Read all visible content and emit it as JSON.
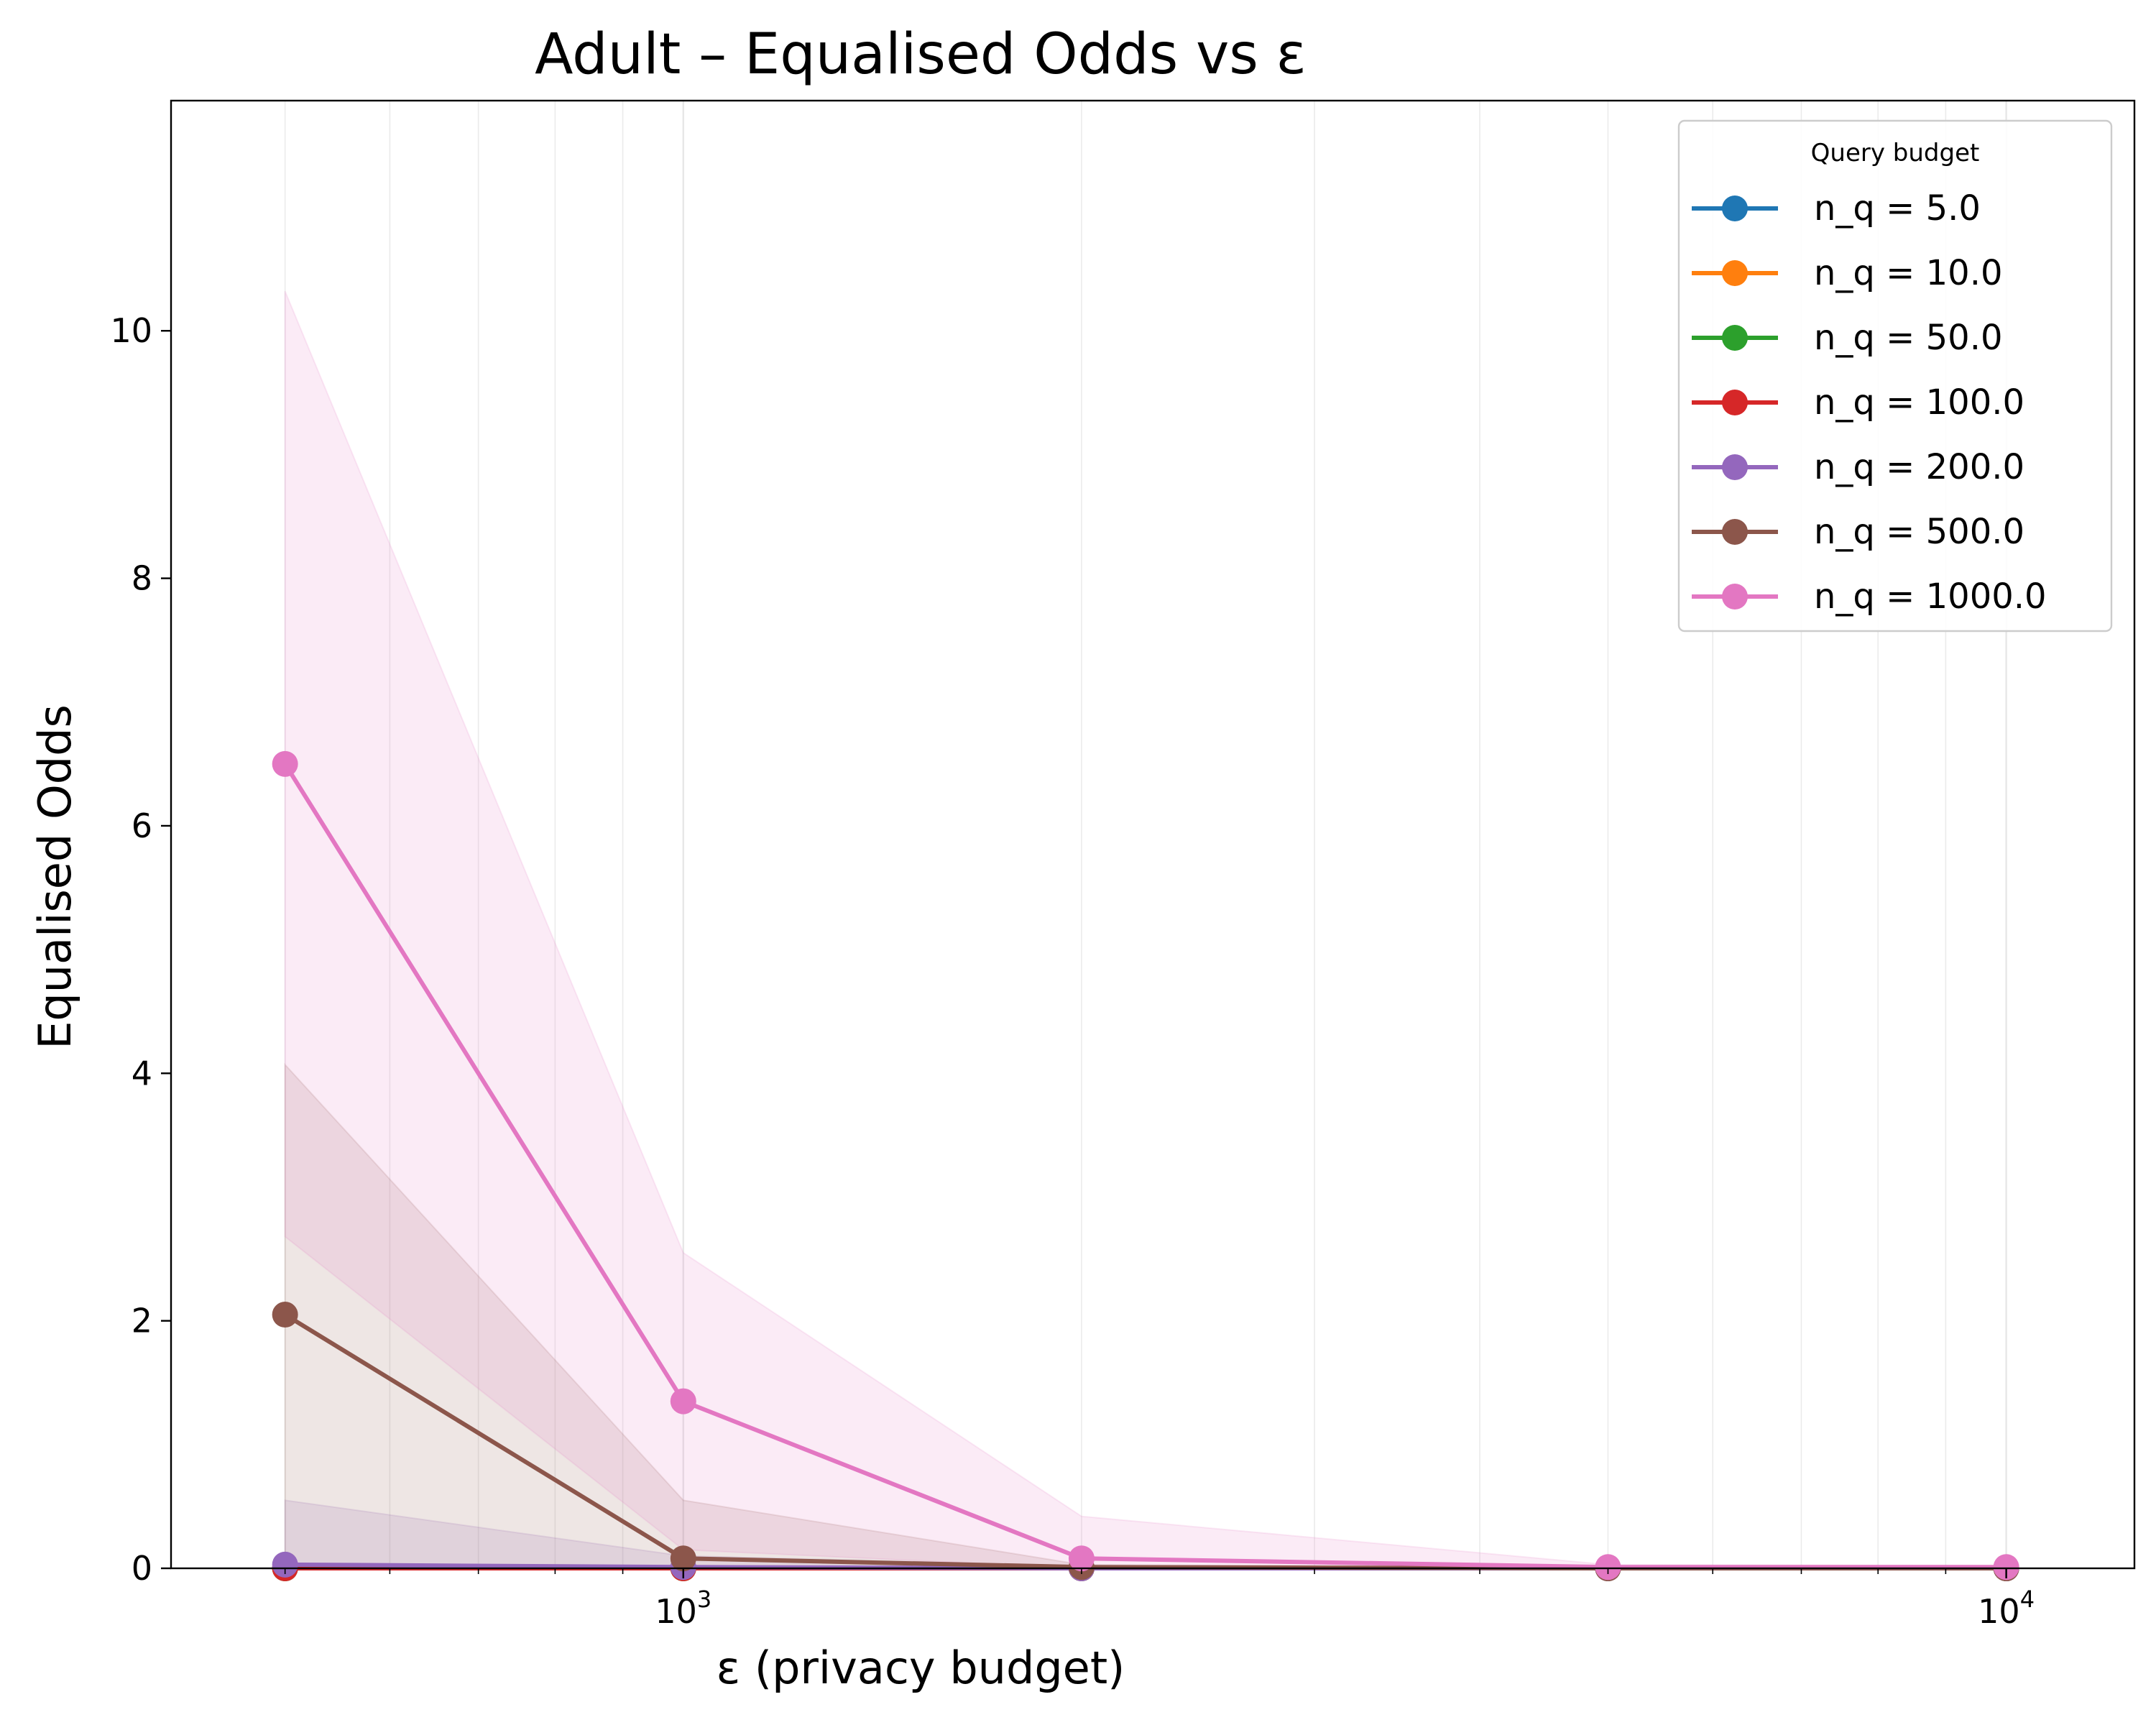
{
  "chart_data": {
    "type": "line",
    "title": "Adult – Equalised Odds vs ε",
    "xlabel": "ε (privacy budget)",
    "ylabel": "Equalised Odds",
    "x_scale": "log",
    "xlim": [
      410,
      12500
    ],
    "ylim": [
      0,
      11.86
    ],
    "x_ticks": [
      {
        "value": 1000,
        "base": "10",
        "exp": "3"
      },
      {
        "value": 10000,
        "base": "10",
        "exp": "4"
      }
    ],
    "y_ticks": [
      0,
      2,
      4,
      6,
      8,
      10
    ],
    "grid": "vertical",
    "legend": {
      "title": "Query budget",
      "position": "top-right"
    },
    "x": [
      500,
      1000,
      2000,
      5000,
      10000
    ],
    "series": [
      {
        "name": "n_q = 5.0",
        "color": "#1f77b4",
        "values": [
          0,
          0,
          0,
          0,
          0
        ],
        "lower": [
          0,
          0,
          0,
          0,
          0
        ],
        "upper": [
          0,
          0,
          0,
          0,
          0
        ]
      },
      {
        "name": "n_q = 10.0",
        "color": "#ff7f0e",
        "values": [
          0,
          0,
          0,
          0,
          0
        ],
        "lower": [
          0,
          0,
          0,
          0,
          0
        ],
        "upper": [
          0,
          0,
          0,
          0,
          0
        ]
      },
      {
        "name": "n_q = 50.0",
        "color": "#2ca02c",
        "values": [
          0,
          0,
          0,
          0,
          0
        ],
        "lower": [
          0,
          0,
          0,
          0,
          0
        ],
        "upper": [
          0,
          0,
          0,
          0,
          0
        ]
      },
      {
        "name": "n_q = 100.0",
        "color": "#d62728",
        "values": [
          0,
          0,
          0,
          0,
          0
        ],
        "lower": [
          0,
          0,
          0,
          0,
          0
        ],
        "upper": [
          0,
          0,
          0,
          0,
          0
        ]
      },
      {
        "name": "n_q = 200.0",
        "color": "#9467bd",
        "values": [
          0.03,
          0.01,
          0,
          0,
          0
        ],
        "lower": [
          0,
          0,
          0,
          0,
          0
        ],
        "upper": [
          0.55,
          0.1,
          0.02,
          0,
          0
        ]
      },
      {
        "name": "n_q = 500.0",
        "color": "#8c564b",
        "values": [
          2.05,
          0.08,
          0.01,
          0,
          0
        ],
        "lower": [
          0,
          0,
          0,
          0,
          0
        ],
        "upper": [
          4.07,
          0.55,
          0.03,
          0,
          0
        ]
      },
      {
        "name": "n_q = 1000.0",
        "color": "#e377c2",
        "values": [
          6.5,
          1.35,
          0.08,
          0.01,
          0.01
        ],
        "lower": [
          2.68,
          0.15,
          0,
          0,
          0
        ],
        "upper": [
          10.32,
          2.55,
          0.42,
          0.03,
          0.02
        ]
      }
    ]
  }
}
